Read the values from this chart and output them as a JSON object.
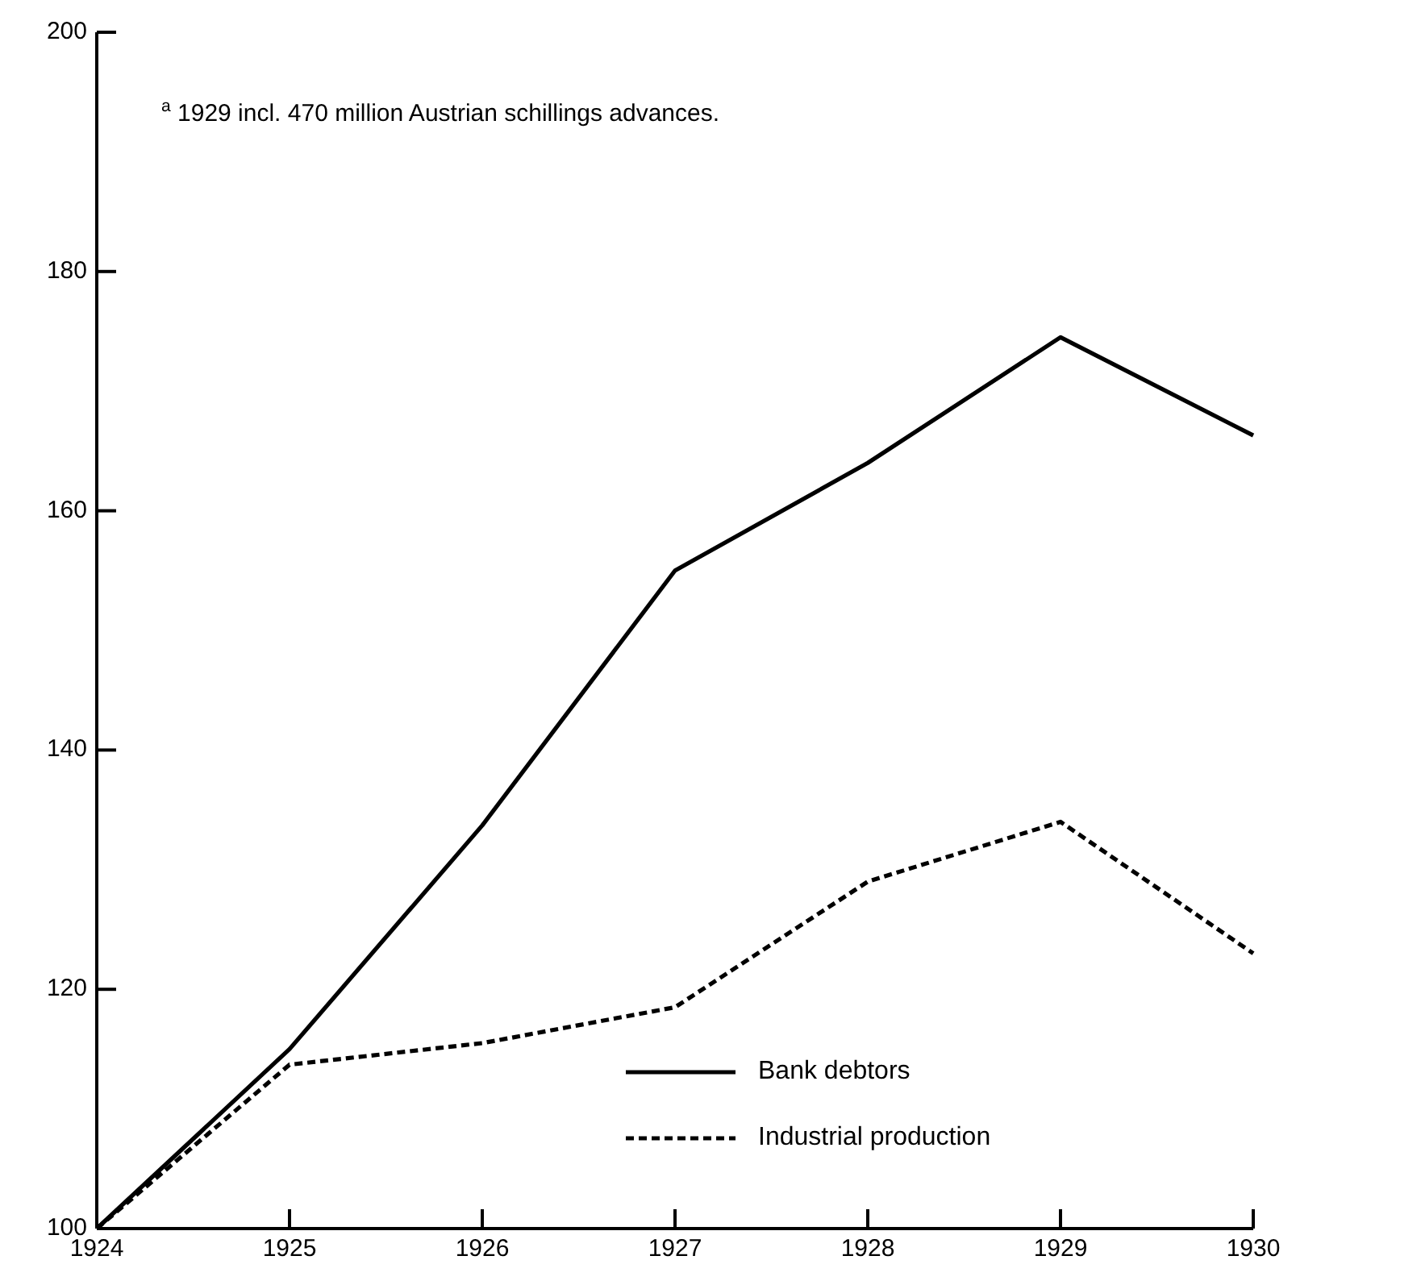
{
  "chart_data": {
    "type": "line",
    "x": [
      1924,
      1925,
      1926,
      1927,
      1928,
      1929,
      1930
    ],
    "xlim": [
      1924,
      1930
    ],
    "xticks": [
      1924,
      1925,
      1926,
      1927,
      1928,
      1929,
      1930
    ],
    "ylim": [
      100,
      200
    ],
    "yticks": [
      100,
      120,
      140,
      160,
      180,
      200
    ],
    "series": [
      {
        "name": "Bank debtors",
        "color": "#000000",
        "line_style": "solid",
        "values": [
          100,
          115,
          133.7,
          155,
          164,
          174.5,
          166.3
        ]
      },
      {
        "name": "Industrial production",
        "color": "#000000",
        "line_style": "dashed",
        "values": [
          100,
          113.7,
          115.5,
          118.5,
          129,
          134,
          123
        ]
      }
    ],
    "legend": "bottom right",
    "annotations": [
      "$^{a}$ 1929 incl. 470 million Austrian schillings advances."
    ]
  }
}
